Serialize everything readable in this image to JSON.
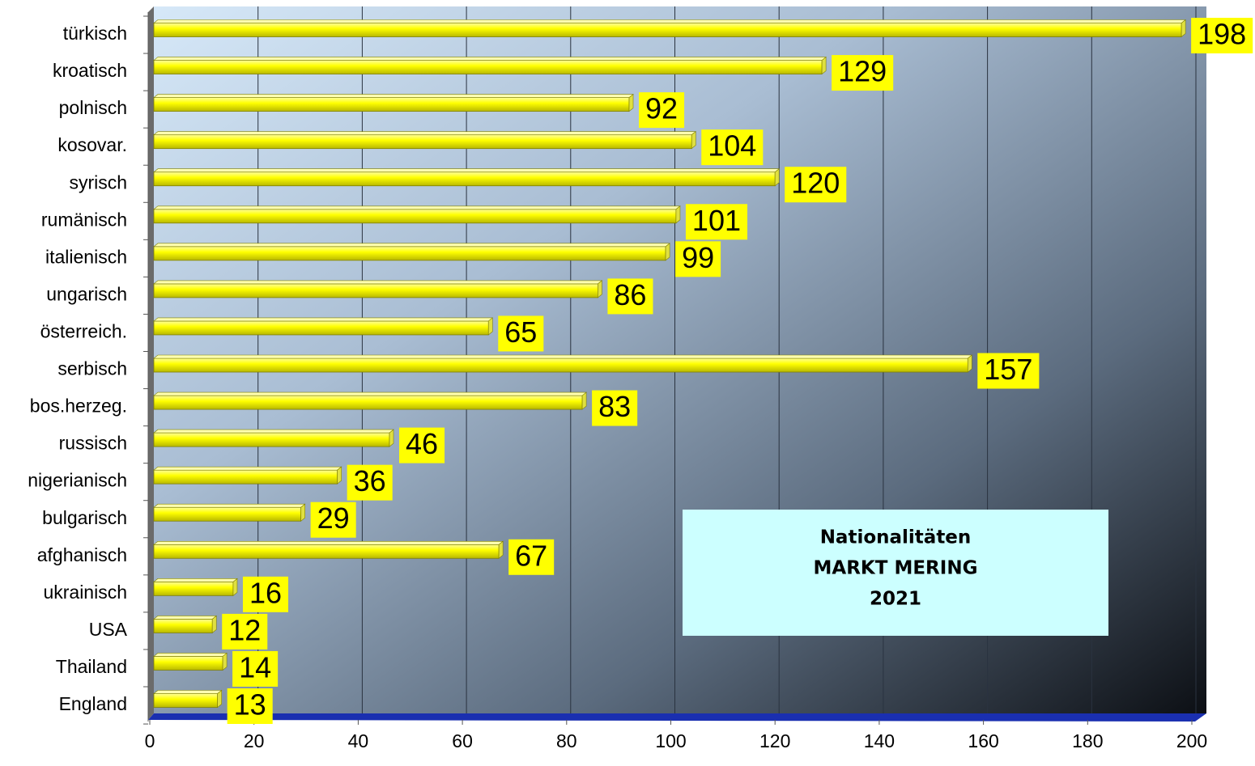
{
  "chart_data": {
    "type": "hbar",
    "title": [
      "Nationalitäten",
      "MARKT MERING",
      "2021"
    ],
    "categories": [
      "türkisch",
      "kroatisch",
      "polnisch",
      "kosovar.",
      "syrisch",
      "rumänisch",
      "italienisch",
      "ungarisch",
      "österreich.",
      "serbisch",
      "bos.herzeg.",
      "russisch",
      "nigerianisch",
      "bulgarisch",
      "afghanisch",
      "ukrainisch",
      "USA",
      "Thailand",
      "England"
    ],
    "values": [
      198,
      129,
      92,
      104,
      120,
      101,
      99,
      86,
      65,
      157,
      83,
      46,
      36,
      29,
      67,
      16,
      12,
      14,
      13
    ],
    "color": "#ffff00",
    "xlim": [
      0,
      200
    ],
    "xticks": [
      0,
      20,
      40,
      60,
      80,
      100,
      120,
      140,
      160,
      180,
      200
    ],
    "grid": true
  }
}
